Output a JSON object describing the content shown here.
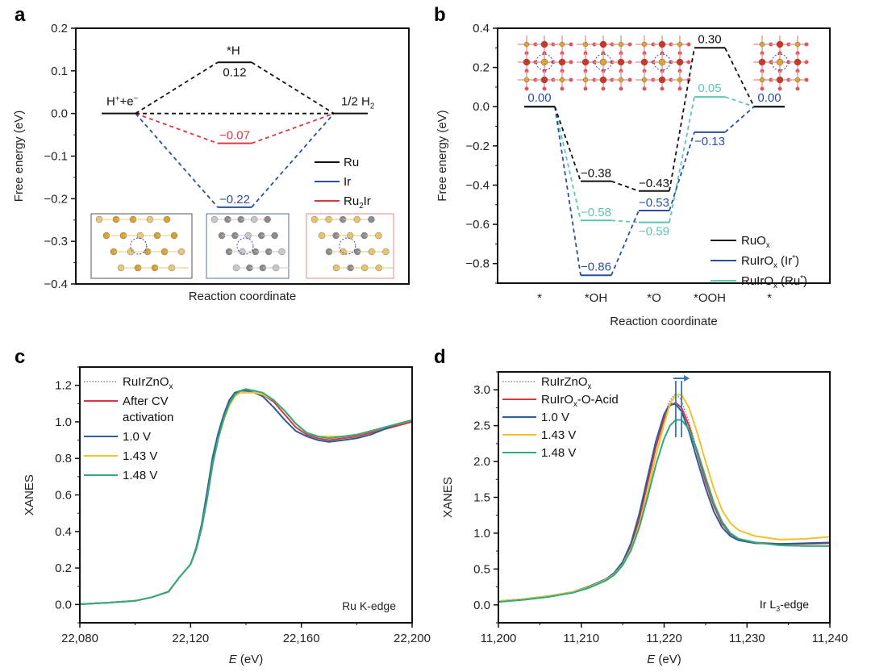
{
  "chart_data": [
    {
      "panel": "a",
      "type": "line",
      "title": "",
      "xlabel": "Reaction coordinate",
      "ylabel": "Free energy (eV)",
      "ylim": [
        -0.4,
        0.2
      ],
      "yticks": [
        "0.2",
        "0.1",
        "0.0",
        "−0.1",
        "−0.2",
        "−0.3",
        "−0.4"
      ],
      "ytick_values": [
        0.2,
        0.1,
        0.0,
        -0.1,
        -0.2,
        -0.3,
        -0.4
      ],
      "states": [
        "H⁺+e⁻",
        "*H",
        "1/2 H₂"
      ],
      "state_labels": {
        "start": "H",
        "start_sup": "+",
        "start_mid": "+e",
        "start_sup2": "−",
        "mid": "*H",
        "end": "1/2 H",
        "end_sub": "2"
      },
      "series": [
        {
          "name": "Ru",
          "color": "#111111",
          "values": [
            0.0,
            0.12,
            0.0
          ],
          "label": "0.12"
        },
        {
          "name": "Ir",
          "color": "#2b4f9c",
          "values": [
            0.0,
            -0.22,
            0.0
          ],
          "label": "−0.22"
        },
        {
          "name": "Ru2Ir",
          "color": "#d9383f",
          "values": [
            0.0,
            -0.07,
            0.0
          ],
          "label": "−0.07"
        }
      ],
      "legend": [
        {
          "name": "Ru",
          "color": "#111111"
        },
        {
          "name": "Ir",
          "color": "#2b4f9c"
        },
        {
          "name": "Ru",
          "sub": "2",
          "suffix": "Ir",
          "color": "#d9383f"
        }
      ],
      "legend_position": "center-right",
      "insets": [
        "Ru slab structure",
        "Ir slab structure",
        "Ru2Ir slab structure"
      ]
    },
    {
      "panel": "b",
      "type": "line",
      "title": "",
      "xlabel": "Reaction coordinate",
      "ylabel": "Free energy (eV)",
      "ylim": [
        -0.9,
        0.4
      ],
      "yticks": [
        "0.4",
        "0.2",
        "0.0",
        "−0.2",
        "−0.4",
        "−0.6",
        "−0.8"
      ],
      "ytick_values": [
        0.4,
        0.2,
        0.0,
        -0.2,
        -0.4,
        -0.6,
        -0.8
      ],
      "categories": [
        "*",
        "*OH",
        "*O",
        "*OOH",
        "*"
      ],
      "series": [
        {
          "name": "RuOx",
          "color": "#111111",
          "values": [
            0.0,
            -0.38,
            -0.43,
            0.3,
            0.0
          ],
          "labels": [
            "",
            "−0.38",
            "−0.43",
            "0.30",
            ""
          ]
        },
        {
          "name": "RuIrOx (Ir*)",
          "color": "#2b4f9c",
          "values": [
            0.0,
            -0.86,
            -0.53,
            -0.13,
            0.0
          ],
          "labels": [
            "0.00",
            "−0.86",
            "−0.53",
            "−0.13",
            "0.00"
          ]
        },
        {
          "name": "RuIrOx (Ru*)",
          "color": "#5ec4b6",
          "values": [
            0.0,
            -0.58,
            -0.59,
            0.05,
            0.0
          ],
          "labels": [
            "",
            "−0.58",
            "−0.59",
            "0.05",
            ""
          ]
        }
      ],
      "legend": [
        {
          "name": "RuO",
          "sub": "x",
          "suffix": "",
          "color": "#111111"
        },
        {
          "name": "RuIrO",
          "sub": "x",
          "suffix": " (Ir*)",
          "color": "#2b4f9c"
        },
        {
          "name": "RuIrO",
          "sub": "x",
          "suffix": " (Ru*)",
          "color": "#5ec4b6"
        }
      ],
      "legend_position": "bottom-right",
      "insets": [
        "* structure",
        "*OH structure",
        "*O structure",
        "*OOH structure"
      ]
    },
    {
      "panel": "c",
      "type": "line",
      "title": "",
      "xlabel": "E (eV)",
      "ylabel": "XANES",
      "xlim": [
        22080,
        22200
      ],
      "ylim": [
        -0.1,
        1.3
      ],
      "xticks": [
        "22,080",
        "22,120",
        "22,160",
        "22,200"
      ],
      "xtick_values": [
        22080,
        22120,
        22160,
        22200
      ],
      "yticks": [
        "0.0",
        "0.2",
        "0.4",
        "0.6",
        "0.8",
        "1.0",
        "1.2"
      ],
      "ytick_values": [
        0.0,
        0.2,
        0.4,
        0.6,
        0.8,
        1.0,
        1.2
      ],
      "annotation": "Ru K-edge",
      "x": [
        22078,
        22090,
        22100,
        22106,
        22112,
        22116,
        22120,
        22122,
        22124,
        22126,
        22128,
        22130,
        22132,
        22134,
        22136,
        22138,
        22140,
        22143,
        22146,
        22150,
        22154,
        22158,
        22162,
        22166,
        22170,
        22175,
        22180,
        22185,
        22190,
        22195,
        22200
      ],
      "series": [
        {
          "name": "RuIrZnOx",
          "color": "#8a8a8a",
          "dashed": true,
          "values": [
            0.0,
            0.01,
            0.02,
            0.04,
            0.07,
            0.15,
            0.22,
            0.3,
            0.42,
            0.6,
            0.8,
            0.93,
            1.03,
            1.11,
            1.16,
            1.17,
            1.17,
            1.16,
            1.14,
            1.08,
            1.01,
            0.95,
            0.92,
            0.9,
            0.89,
            0.9,
            0.91,
            0.93,
            0.96,
            0.98,
            1.0
          ]
        },
        {
          "name": "After CV activation",
          "color": "#d9383f",
          "values": [
            0.0,
            0.01,
            0.02,
            0.04,
            0.07,
            0.15,
            0.22,
            0.3,
            0.42,
            0.58,
            0.78,
            0.92,
            1.02,
            1.1,
            1.15,
            1.17,
            1.17,
            1.16,
            1.15,
            1.11,
            1.04,
            0.97,
            0.93,
            0.91,
            0.9,
            0.91,
            0.92,
            0.94,
            0.96,
            0.98,
            1.0
          ]
        },
        {
          "name": "1.0 V",
          "color": "#2b5c9c",
          "values": [
            0.0,
            0.01,
            0.02,
            0.04,
            0.07,
            0.15,
            0.22,
            0.31,
            0.44,
            0.62,
            0.81,
            0.94,
            1.04,
            1.12,
            1.16,
            1.17,
            1.17,
            1.16,
            1.14,
            1.08,
            1.01,
            0.95,
            0.92,
            0.9,
            0.89,
            0.9,
            0.91,
            0.93,
            0.96,
            0.99,
            1.01
          ]
        },
        {
          "name": "1.43 V",
          "color": "#f2c12e",
          "values": [
            0.0,
            0.01,
            0.02,
            0.04,
            0.07,
            0.15,
            0.22,
            0.3,
            0.42,
            0.58,
            0.77,
            0.91,
            1.01,
            1.09,
            1.14,
            1.16,
            1.16,
            1.16,
            1.15,
            1.12,
            1.06,
            0.99,
            0.94,
            0.92,
            0.92,
            0.92,
            0.93,
            0.95,
            0.97,
            0.99,
            1.01
          ]
        },
        {
          "name": "1.48 V",
          "color": "#2eab7c",
          "values": [
            0.0,
            0.01,
            0.02,
            0.04,
            0.07,
            0.15,
            0.22,
            0.3,
            0.42,
            0.58,
            0.77,
            0.91,
            1.02,
            1.1,
            1.15,
            1.17,
            1.18,
            1.17,
            1.16,
            1.12,
            1.06,
            0.99,
            0.94,
            0.92,
            0.91,
            0.92,
            0.93,
            0.95,
            0.97,
            0.99,
            1.01
          ]
        }
      ],
      "legend": [
        {
          "name": "RuIrZnO",
          "sub": "x",
          "lines": [
            "RuIrZnO"
          ]
        },
        {
          "name": "After CV activation",
          "lines": [
            "After CV",
            "activation"
          ]
        },
        {
          "name": "1.0 V",
          "lines": [
            "1.0 V"
          ]
        },
        {
          "name": "1.43 V",
          "lines": [
            "1.43 V"
          ]
        },
        {
          "name": "1.48 V",
          "lines": [
            "1.48 V"
          ]
        }
      ],
      "legend_position": "top-left"
    },
    {
      "panel": "d",
      "type": "line",
      "title": "",
      "xlabel": "E (eV)",
      "ylabel": "XANES",
      "xlim": [
        11200,
        11240
      ],
      "ylim": [
        -0.25,
        3.25
      ],
      "xticks": [
        "11,200",
        "11,210",
        "11,220",
        "11,230",
        "11,240"
      ],
      "xtick_values": [
        11200,
        11210,
        11220,
        11230,
        11240
      ],
      "yticks": [
        "0.0",
        "0.5",
        "1.0",
        "1.5",
        "2.0",
        "2.5",
        "3.0"
      ],
      "ytick_values": [
        0.0,
        0.5,
        1.0,
        1.5,
        2.0,
        2.5,
        3.0
      ],
      "annotation": "Ir L3-edge",
      "peak_markers": [
        11221.4,
        11222.1
      ],
      "x": [
        11200,
        11203,
        11206,
        11209,
        11211,
        11213,
        11214,
        11215,
        11216,
        11217,
        11218,
        11219,
        11220,
        11220.7,
        11221.4,
        11222.1,
        11223,
        11224,
        11225,
        11226,
        11227,
        11228,
        11229,
        11231,
        11234,
        11237,
        11240
      ],
      "series": [
        {
          "name": "RuIrZnOx",
          "color": "#8a8a8a",
          "dashed": true,
          "values": [
            0.05,
            0.08,
            0.12,
            0.18,
            0.26,
            0.36,
            0.45,
            0.6,
            0.85,
            1.25,
            1.75,
            2.25,
            2.65,
            2.85,
            2.95,
            2.85,
            2.55,
            2.15,
            1.75,
            1.4,
            1.15,
            1.0,
            0.92,
            0.87,
            0.85,
            0.85,
            0.86
          ]
        },
        {
          "name": "RuIrOx-O-Acid",
          "color": "#d9383f",
          "values": [
            0.05,
            0.08,
            0.12,
            0.18,
            0.25,
            0.35,
            0.44,
            0.58,
            0.82,
            1.2,
            1.7,
            2.2,
            2.6,
            2.78,
            2.82,
            2.75,
            2.5,
            2.12,
            1.72,
            1.38,
            1.13,
            0.99,
            0.92,
            0.87,
            0.85,
            0.85,
            0.86
          ]
        },
        {
          "name": "1.0 V",
          "color": "#2b5c9c",
          "values": [
            0.05,
            0.08,
            0.12,
            0.18,
            0.26,
            0.36,
            0.45,
            0.6,
            0.86,
            1.27,
            1.78,
            2.28,
            2.66,
            2.8,
            2.8,
            2.7,
            2.42,
            2.02,
            1.63,
            1.3,
            1.08,
            0.96,
            0.9,
            0.86,
            0.85,
            0.86,
            0.87
          ]
        },
        {
          "name": "1.43 V",
          "color": "#f2c12e",
          "values": [
            0.05,
            0.08,
            0.12,
            0.18,
            0.25,
            0.35,
            0.43,
            0.56,
            0.78,
            1.12,
            1.58,
            2.08,
            2.52,
            2.8,
            2.93,
            2.93,
            2.75,
            2.4,
            2.0,
            1.62,
            1.32,
            1.14,
            1.04,
            0.96,
            0.91,
            0.92,
            0.95
          ]
        },
        {
          "name": "1.48 V",
          "color": "#2eab7c",
          "values": [
            0.04,
            0.07,
            0.11,
            0.17,
            0.24,
            0.34,
            0.42,
            0.55,
            0.76,
            1.08,
            1.5,
            1.95,
            2.32,
            2.5,
            2.58,
            2.58,
            2.45,
            2.15,
            1.78,
            1.42,
            1.16,
            1.0,
            0.92,
            0.87,
            0.83,
            0.82,
            0.82
          ]
        }
      ],
      "legend": [
        {
          "name": "RuIrZnO",
          "sub": "x",
          "suffix": ""
        },
        {
          "name": "RuIrO",
          "sub": "x",
          "suffix": "-O-Acid"
        },
        {
          "name": "1.0 V",
          "sub": "",
          "suffix": ""
        },
        {
          "name": "1.43 V",
          "sub": "",
          "suffix": ""
        },
        {
          "name": "1.48 V",
          "sub": "",
          "suffix": ""
        }
      ],
      "legend_position": "top-left"
    }
  ],
  "panels": {
    "a": "a",
    "b": "b",
    "c": "c",
    "d": "d"
  }
}
